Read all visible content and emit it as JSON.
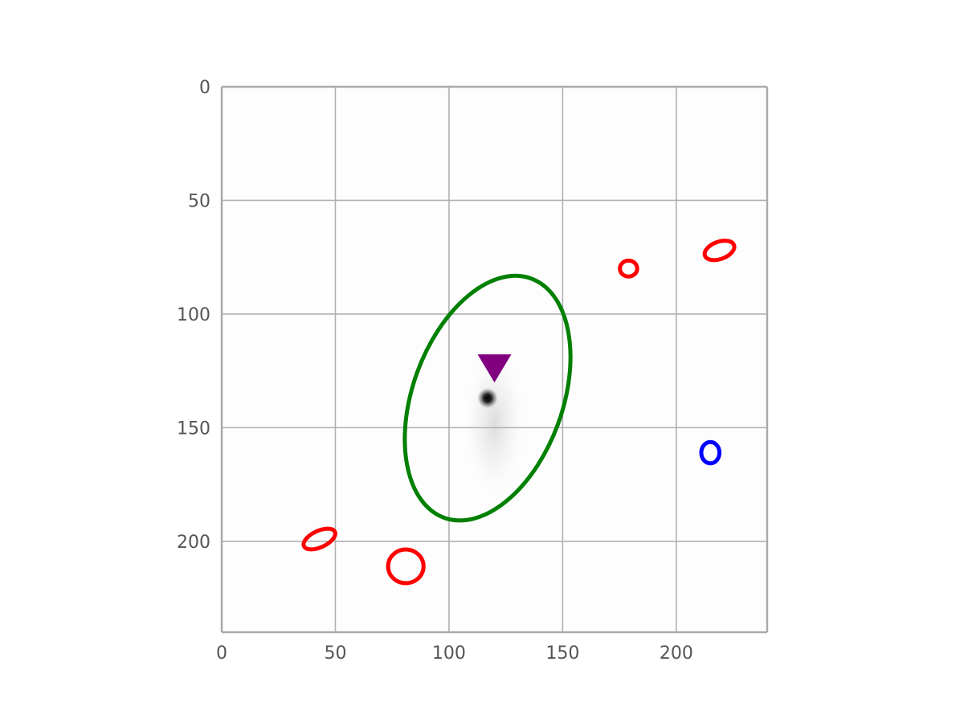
{
  "chart_data": {
    "type": "image-overlay",
    "title": "",
    "xlabel": "",
    "ylabel": "",
    "xlim": [
      0,
      240
    ],
    "ylim": [
      240,
      0
    ],
    "grid": true,
    "x_ticks": [
      0,
      50,
      100,
      150,
      200
    ],
    "y_ticks": [
      0,
      50,
      100,
      150,
      200
    ],
    "image": {
      "description": "faint galaxy cutout",
      "bright_source": {
        "x": 117,
        "y": 137
      },
      "diffuse_glow": {
        "x": 120,
        "y": 148,
        "rx": 14,
        "ry": 34
      },
      "colormap": "grey-inverted"
    },
    "ellipses": [
      {
        "name": "target-aperture",
        "color": "#008000",
        "cx": 117,
        "cy": 137,
        "a": 56,
        "b": 33,
        "angle": 110
      },
      {
        "name": "mask-source-1",
        "color": "#ff0000",
        "cx": 219,
        "cy": 72,
        "a": 6.8,
        "b": 3.8,
        "angle": -20
      },
      {
        "name": "mask-source-2",
        "color": "#ff0000",
        "cx": 179,
        "cy": 80,
        "a": 3.8,
        "b": 3.5,
        "angle": 0
      },
      {
        "name": "mask-source-3",
        "color": "#ff0000",
        "cx": 43,
        "cy": 199,
        "a": 7.5,
        "b": 3.6,
        "angle": -25
      },
      {
        "name": "mask-source-4",
        "color": "#ff0000",
        "cx": 81,
        "cy": 211,
        "a": 7.8,
        "b": 7.4,
        "angle": 0
      },
      {
        "name": "reference-source",
        "color": "#0000ff",
        "cx": 215,
        "cy": 161,
        "a": 4.7,
        "b": 4.0,
        "angle": 90
      }
    ],
    "markers": [
      {
        "name": "target-marker",
        "shape": "triangle-down",
        "color": "#800080",
        "x": 120,
        "y": 122
      }
    ]
  }
}
